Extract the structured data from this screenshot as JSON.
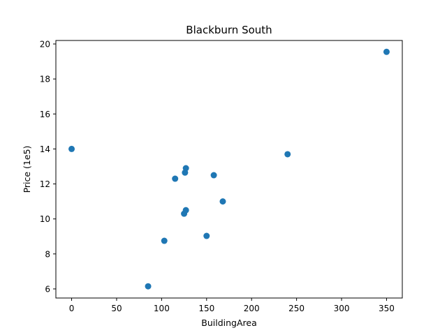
{
  "chart_data": {
    "type": "scatter",
    "title": "Blackburn South",
    "xlabel": "BuildingArea",
    "ylabel": "Price (1e5)",
    "xlim": [
      -17.5,
      367.5
    ],
    "ylim": [
      5.48,
      20.2
    ],
    "xticks": [
      0,
      50,
      100,
      150,
      200,
      250,
      300,
      350
    ],
    "yticks": [
      6,
      8,
      10,
      12,
      14,
      16,
      18,
      20
    ],
    "grid": false,
    "points": [
      {
        "x": 0,
        "y": 14.0
      },
      {
        "x": 85,
        "y": 6.15
      },
      {
        "x": 103,
        "y": 8.75
      },
      {
        "x": 115,
        "y": 12.3
      },
      {
        "x": 125,
        "y": 10.3
      },
      {
        "x": 126,
        "y": 12.65
      },
      {
        "x": 127,
        "y": 12.9
      },
      {
        "x": 127,
        "y": 10.5
      },
      {
        "x": 150,
        "y": 9.03
      },
      {
        "x": 158,
        "y": 12.5
      },
      {
        "x": 168,
        "y": 11.0
      },
      {
        "x": 240,
        "y": 13.7
      },
      {
        "x": 350,
        "y": 19.55
      }
    ],
    "colors": {
      "marker": "#1f77b4"
    }
  }
}
